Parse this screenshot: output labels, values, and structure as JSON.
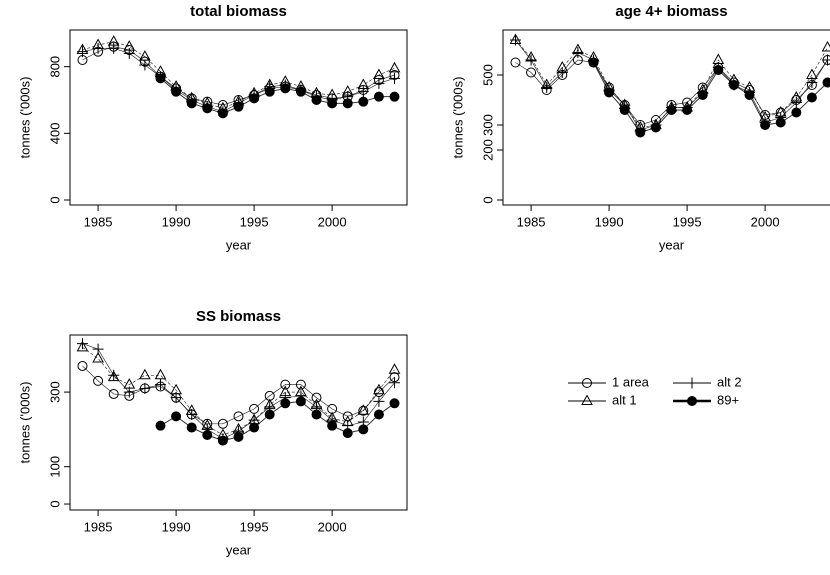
{
  "chart_data": [
    {
      "type": "line",
      "title": "total biomass",
      "xlabel": "year",
      "ylabel": "tonnes ('000s)",
      "x": [
        1984,
        1985,
        1986,
        1987,
        1988,
        1989,
        1990,
        1991,
        1992,
        1993,
        1994,
        1995,
        1996,
        1997,
        1998,
        1999,
        2000,
        2001,
        2002,
        2003,
        2004
      ],
      "xlim": [
        1983.2,
        2004.8
      ],
      "xticks": [
        1985,
        1990,
        1995,
        2000
      ],
      "ylim": [
        -30,
        1020
      ],
      "yticks": [
        0,
        400,
        800
      ],
      "series": [
        {
          "name": "1 area",
          "color": "#000000",
          "marker": "circle",
          "values": [
            840,
            890,
            920,
            900,
            830,
            740,
            670,
            610,
            590,
            570,
            600,
            630,
            670,
            680,
            660,
            630,
            610,
            620,
            660,
            720,
            750
          ]
        },
        {
          "name": "alt 1",
          "color": "#000000",
          "marker": "triangle",
          "values": [
            900,
            930,
            950,
            920,
            860,
            770,
            680,
            610,
            580,
            550,
            590,
            640,
            690,
            710,
            680,
            640,
            630,
            650,
            690,
            750,
            790
          ]
        },
        {
          "name": "alt 2",
          "color": "#000000",
          "marker": "plus",
          "values": [
            890,
            910,
            910,
            880,
            810,
            740,
            660,
            600,
            560,
            530,
            580,
            630,
            680,
            690,
            660,
            620,
            600,
            620,
            650,
            700,
            730
          ]
        },
        {
          "name": "89+",
          "color": "#000000",
          "marker": "filled-circle",
          "values": [
            null,
            null,
            null,
            null,
            null,
            730,
            650,
            580,
            550,
            520,
            560,
            610,
            650,
            670,
            650,
            600,
            580,
            580,
            590,
            620,
            620
          ]
        }
      ]
    },
    {
      "type": "line",
      "title": "age 4+ biomass",
      "xlabel": "year",
      "ylabel": "tonnes ('000s)",
      "x": [
        1984,
        1985,
        1986,
        1987,
        1988,
        1989,
        1990,
        1991,
        1992,
        1993,
        1994,
        1995,
        1996,
        1997,
        1998,
        1999,
        2000,
        2001,
        2002,
        2003,
        2004
      ],
      "xlim": [
        1983.2,
        2004.8
      ],
      "xticks": [
        1985,
        1990,
        1995,
        2000
      ],
      "ylim": [
        -20,
        680
      ],
      "yticks": [
        0,
        200,
        300,
        500
      ],
      "series": [
        {
          "name": "1 area",
          "color": "#000000",
          "marker": "circle",
          "values": [
            550,
            510,
            440,
            500,
            560,
            550,
            450,
            380,
            300,
            320,
            380,
            390,
            450,
            530,
            470,
            440,
            340,
            350,
            400,
            460,
            560
          ]
        },
        {
          "name": "alt 1",
          "color": "#000000",
          "marker": "triangle",
          "values": [
            640,
            570,
            460,
            530,
            600,
            570,
            450,
            380,
            290,
            300,
            370,
            370,
            440,
            560,
            480,
            450,
            330,
            350,
            410,
            500,
            610
          ]
        },
        {
          "name": "alt 2",
          "color": "#000000",
          "marker": "plus",
          "values": [
            640,
            560,
            450,
            510,
            590,
            560,
            440,
            380,
            280,
            300,
            370,
            370,
            430,
            530,
            460,
            430,
            310,
            330,
            390,
            470,
            560
          ]
        },
        {
          "name": "89+",
          "color": "#000000",
          "marker": "filled-circle",
          "values": [
            null,
            null,
            null,
            null,
            null,
            550,
            430,
            360,
            270,
            290,
            360,
            360,
            420,
            520,
            460,
            420,
            300,
            310,
            350,
            410,
            470
          ]
        }
      ]
    },
    {
      "type": "line",
      "title": "SS biomass",
      "xlabel": "year",
      "ylabel": "tonnes ('000s)",
      "x": [
        1984,
        1985,
        1986,
        1987,
        1988,
        1989,
        1990,
        1991,
        1992,
        1993,
        1994,
        1995,
        1996,
        1997,
        1998,
        1999,
        2000,
        2001,
        2002,
        2003,
        2004
      ],
      "xlim": [
        1983.2,
        2004.8
      ],
      "xticks": [
        1985,
        1990,
        1995,
        2000
      ],
      "ylim": [
        -16,
        453
      ],
      "yticks": [
        0,
        100,
        300
      ],
      "series": [
        {
          "name": "1 area",
          "color": "#000000",
          "marker": "circle",
          "values": [
            370,
            330,
            295,
            290,
            310,
            315,
            285,
            240,
            215,
            215,
            235,
            255,
            290,
            320,
            320,
            285,
            255,
            235,
            250,
            300,
            340
          ]
        },
        {
          "name": "alt 1",
          "color": "#000000",
          "marker": "triangle",
          "values": [
            420,
            390,
            340,
            320,
            345,
            345,
            305,
            250,
            210,
            185,
            200,
            225,
            265,
            300,
            300,
            265,
            230,
            220,
            250,
            305,
            360
          ]
        },
        {
          "name": "alt 2",
          "color": "#000000",
          "marker": "plus",
          "values": [
            430,
            415,
            345,
            300,
            310,
            320,
            285,
            240,
            200,
            175,
            195,
            225,
            260,
            285,
            290,
            260,
            225,
            210,
            220,
            275,
            325
          ]
        },
        {
          "name": "89+",
          "color": "#000000",
          "marker": "filled-circle",
          "values": [
            null,
            null,
            null,
            null,
            null,
            210,
            235,
            205,
            185,
            170,
            180,
            205,
            240,
            270,
            275,
            240,
            210,
            190,
            200,
            240,
            270
          ]
        }
      ]
    }
  ]
}
